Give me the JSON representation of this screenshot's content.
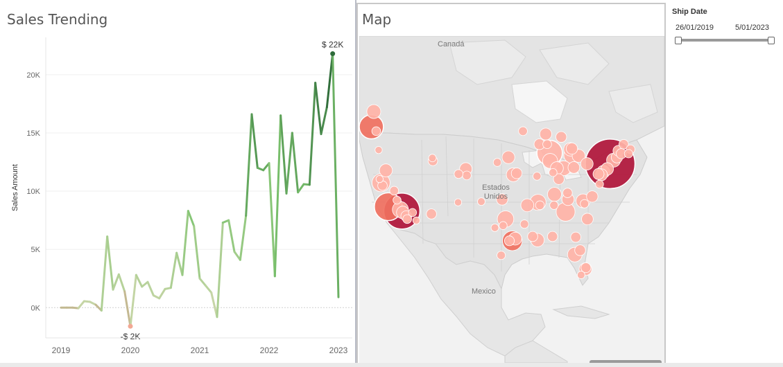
{
  "sales_panel": {
    "title": "Sales Trending"
  },
  "map_panel": {
    "title": "Map",
    "labels": [
      "Canadá",
      "Estados Unidos",
      "Mexico"
    ]
  },
  "filter": {
    "title": "Ship Date",
    "start_label": "26/01/2019",
    "end_label": "5/01/2023"
  },
  "colors": {
    "line_high": "#2e6b3a",
    "line_mid": "#7cc36e",
    "line_low": "#e8b4a4",
    "max_marker": "#2e6b3a",
    "min_marker": "#f2a894",
    "bubble_light": "#ffb3a7",
    "bubble_mid": "#f07060",
    "bubble_dark": "#b0153a"
  },
  "chart_data": [
    {
      "type": "line",
      "title": "Sales Trending",
      "xlabel": "",
      "ylabel": "Sales Amount",
      "x_tick_labels": [
        "2019",
        "2020",
        "2021",
        "2022",
        "2023"
      ],
      "y_tick_labels": [
        "0K",
        "5K",
        "10K",
        "15K",
        "20K"
      ],
      "ylim": [
        -2600,
        23200
      ],
      "grid": true,
      "annotations": [
        {
          "text": "$ 22K",
          "x": "2022-12",
          "y": 21800,
          "position": "above"
        },
        {
          "text": "-$ 2K",
          "x": "2020-01",
          "y": -1600,
          "position": "below"
        }
      ],
      "series": [
        {
          "x": [
            "2019-01",
            "2019-02",
            "2019-03",
            "2019-04",
            "2019-05",
            "2019-06",
            "2019-07",
            "2019-08",
            "2019-09",
            "2019-10",
            "2019-11",
            "2019-12",
            "2020-01",
            "2020-02",
            "2020-03",
            "2020-04",
            "2020-05",
            "2020-06",
            "2020-07",
            "2020-08",
            "2020-09",
            "2020-10",
            "2020-11",
            "2020-12",
            "2021-01",
            "2021-02",
            "2021-03",
            "2021-04",
            "2021-05",
            "2021-06",
            "2021-07",
            "2021-08",
            "2021-09",
            "2021-10",
            "2021-11",
            "2021-12",
            "2022-01",
            "2022-02",
            "2022-03",
            "2022-04",
            "2022-05",
            "2022-06",
            "2022-07",
            "2022-08",
            "2022-09",
            "2022-10",
            "2022-11",
            "2022-12",
            "2023-01"
          ],
          "values": [
            0,
            0,
            0,
            -50,
            550,
            500,
            250,
            -250,
            6100,
            1550,
            2850,
            1400,
            -1600,
            2800,
            1800,
            2200,
            1050,
            800,
            1600,
            1700,
            4700,
            2800,
            8300,
            7000,
            2500,
            1900,
            1300,
            -800,
            7300,
            7500,
            4800,
            4100,
            7900,
            16600,
            12000,
            11800,
            12400,
            2700,
            16500,
            9800,
            15000,
            9900,
            10600,
            10550,
            19300,
            14900,
            17200,
            21800,
            900
          ]
        }
      ]
    },
    {
      "type": "scatter",
      "title": "Map",
      "xlabel": "",
      "ylabel": "",
      "xlim": [
        -127,
        -64
      ],
      "ylim": [
        13,
        58
      ],
      "series": [
        {
          "x": [
            -124.5,
            -124,
            -123.5,
            -122.8,
            -122.5,
            -122.2,
            -123,
            -121.5,
            -121,
            -119.8,
            -119.2,
            -118.5,
            -118.2,
            -118,
            -117.3,
            -117.1,
            -116,
            -115.2,
            -112.1,
            -111.8,
            -111.9,
            -106.6,
            -105,
            -104.8,
            -97.5,
            -96.8,
            -96.2,
            -95.4,
            -95.2,
            -94.5,
            -93.2,
            -92.3,
            -91.2,
            -90.1,
            -90.2,
            -89.8,
            -88.5,
            -87.7,
            -87.6,
            -87.1,
            -86.7,
            -86.2,
            -85.8,
            -84.8,
            -84.4,
            -83.9,
            -83.4,
            -83,
            -82.7,
            -82.5,
            -81.7,
            -81.4,
            -80.8,
            -80.3,
            -80,
            -79.9,
            -78.9,
            -77.6,
            -77,
            -76.6,
            -75.8,
            -75.2,
            -74.5,
            -73.8,
            -73.5,
            -72.9,
            -72.4,
            -71.4,
            -71,
            -77.4,
            -96,
            -94.8,
            -85.3,
            -84,
            -83.1,
            -80.2,
            -82.3,
            -89.7,
            -92.9,
            -97.3,
            -101.8,
            -106.5,
            -98.5,
            -99,
            -97.7,
            -90.3,
            -86.8,
            -88.2,
            -87,
            -80.5,
            -81.2
          ],
          "values": [
            900,
            300,
            120,
            80,
            500,
            140,
            80,
            260,
            1200,
            120,
            100,
            400,
            2000,
            250,
            180,
            120,
            100,
            80,
            160,
            140,
            90,
            80,
            240,
            120,
            200,
            420,
            250,
            600,
            300,
            180,
            120,
            260,
            160,
            400,
            280,
            180,
            220,
            1000,
            350,
            160,
            300,
            260,
            180,
            340,
            550,
            230,
            280,
            450,
            210,
            330,
            260,
            180,
            300,
            250,
            240,
            210,
            200,
            190,
            220,
            260,
            240,
            3800,
            300,
            200,
            180,
            160,
            140,
            110,
            120,
            100,
            150,
            260,
            180,
            140,
            200,
            150,
            160,
            120,
            110,
            100,
            90,
            120,
            100,
            90,
            110,
            100,
            110,
            120,
            100,
            110,
            90
          ],
          "colors": [
            "mid",
            "light",
            "light",
            "light",
            "light",
            "light",
            "light",
            "light",
            "mid",
            "light",
            "light",
            "light",
            "dark",
            "light",
            "light",
            "light",
            "light",
            "light",
            "light",
            "light",
            "light",
            "light",
            "light",
            "light",
            "light",
            "light",
            "light",
            "mid",
            "light",
            "light",
            "light",
            "light",
            "light",
            "light",
            "light",
            "light",
            "light",
            "light",
            "light",
            "light",
            "light",
            "light",
            "light",
            "light",
            "light",
            "light",
            "light",
            "light",
            "light",
            "light",
            "light",
            "light",
            "light",
            "light",
            "light",
            "light",
            "light",
            "light",
            "light",
            "light",
            "light",
            "dark",
            "light",
            "light",
            "light",
            "light",
            "light",
            "light",
            "light",
            "light",
            "light",
            "light",
            "light",
            "light",
            "light",
            "light",
            "light",
            "light",
            "light",
            "light",
            "light",
            "light",
            "light",
            "light",
            "light",
            "light",
            "light",
            "light",
            "light",
            "light",
            "light"
          ]
        }
      ]
    }
  ]
}
